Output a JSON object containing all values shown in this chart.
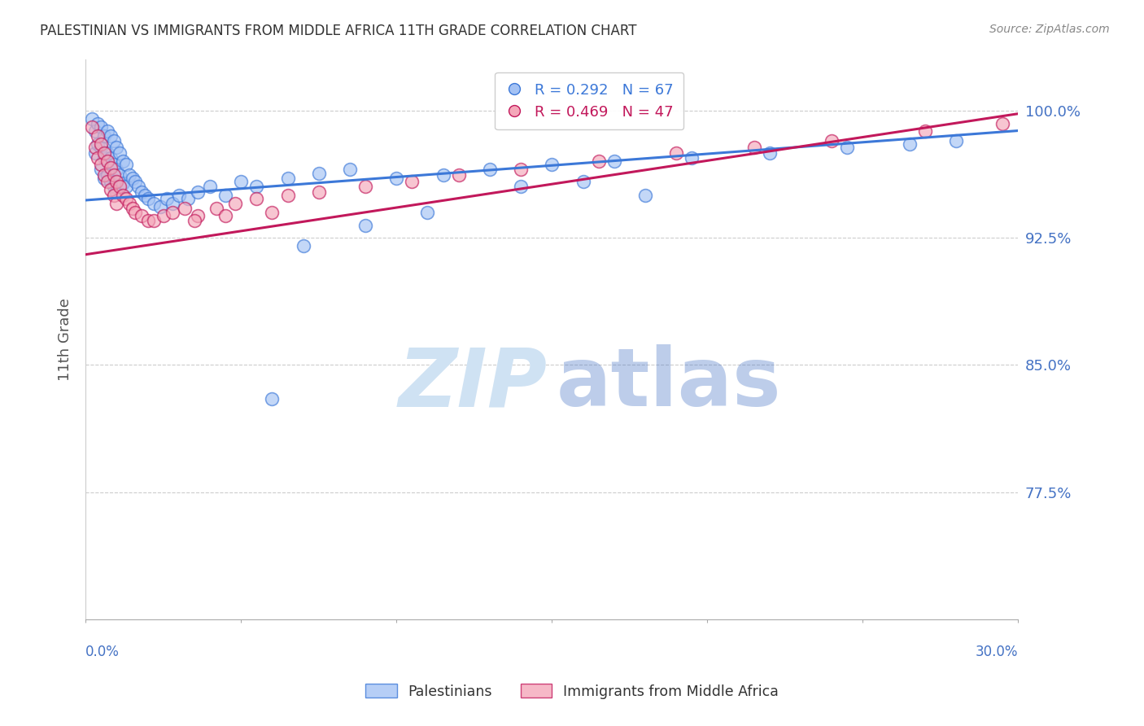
{
  "title": "PALESTINIAN VS IMMIGRANTS FROM MIDDLE AFRICA 11TH GRADE CORRELATION CHART",
  "source": "Source: ZipAtlas.com",
  "ylabel": "11th Grade",
  "ytick_labels": [
    "100.0%",
    "92.5%",
    "85.0%",
    "77.5%"
  ],
  "ytick_values": [
    1.0,
    0.925,
    0.85,
    0.775
  ],
  "xlim": [
    0.0,
    0.3
  ],
  "ylim": [
    0.7,
    1.03
  ],
  "blue_R": 0.292,
  "blue_N": 67,
  "pink_R": 0.469,
  "pink_N": 47,
  "blue_color": "#a4c2f4",
  "pink_color": "#f4a7b9",
  "blue_line_color": "#3c78d8",
  "pink_line_color": "#c2185b",
  "grid_color": "#cccccc",
  "title_color": "#333333",
  "axis_label_color": "#555555",
  "ytick_color": "#4472c4",
  "watermark_zip_color": "#cfe2f3",
  "watermark_atlas_color": "#4472c4",
  "blue_trend_x0": 0.0,
  "blue_trend_x1": 0.3,
  "blue_trend_y0": 0.947,
  "blue_trend_y1": 0.988,
  "pink_trend_x0": 0.0,
  "pink_trend_x1": 0.3,
  "pink_trend_y0": 0.915,
  "pink_trend_y1": 0.998,
  "blue_scatter_x": [
    0.002,
    0.003,
    0.003,
    0.004,
    0.004,
    0.005,
    0.005,
    0.005,
    0.006,
    0.006,
    0.006,
    0.007,
    0.007,
    0.007,
    0.008,
    0.008,
    0.008,
    0.009,
    0.009,
    0.009,
    0.01,
    0.01,
    0.01,
    0.011,
    0.011,
    0.012,
    0.012,
    0.013,
    0.013,
    0.014,
    0.015,
    0.016,
    0.017,
    0.018,
    0.019,
    0.02,
    0.022,
    0.024,
    0.026,
    0.028,
    0.03,
    0.033,
    0.036,
    0.04,
    0.045,
    0.05,
    0.055,
    0.065,
    0.075,
    0.085,
    0.1,
    0.115,
    0.13,
    0.15,
    0.17,
    0.195,
    0.22,
    0.245,
    0.265,
    0.28,
    0.06,
    0.07,
    0.09,
    0.11,
    0.14,
    0.16,
    0.18
  ],
  "blue_scatter_y": [
    0.995,
    0.988,
    0.975,
    0.992,
    0.98,
    0.99,
    0.978,
    0.965,
    0.985,
    0.972,
    0.96,
    0.988,
    0.975,
    0.962,
    0.985,
    0.972,
    0.958,
    0.982,
    0.968,
    0.955,
    0.978,
    0.965,
    0.952,
    0.975,
    0.962,
    0.97,
    0.957,
    0.968,
    0.955,
    0.962,
    0.96,
    0.958,
    0.955,
    0.952,
    0.95,
    0.948,
    0.945,
    0.943,
    0.948,
    0.945,
    0.95,
    0.948,
    0.952,
    0.955,
    0.95,
    0.958,
    0.955,
    0.96,
    0.963,
    0.965,
    0.96,
    0.962,
    0.965,
    0.968,
    0.97,
    0.972,
    0.975,
    0.978,
    0.98,
    0.982,
    0.83,
    0.92,
    0.932,
    0.94,
    0.955,
    0.958,
    0.95
  ],
  "pink_scatter_x": [
    0.002,
    0.003,
    0.004,
    0.004,
    0.005,
    0.005,
    0.006,
    0.006,
    0.007,
    0.007,
    0.008,
    0.008,
    0.009,
    0.009,
    0.01,
    0.01,
    0.011,
    0.012,
    0.013,
    0.014,
    0.015,
    0.016,
    0.018,
    0.02,
    0.022,
    0.025,
    0.028,
    0.032,
    0.036,
    0.042,
    0.048,
    0.055,
    0.065,
    0.075,
    0.09,
    0.105,
    0.12,
    0.14,
    0.165,
    0.19,
    0.215,
    0.24,
    0.27,
    0.295,
    0.035,
    0.045,
    0.06
  ],
  "pink_scatter_y": [
    0.99,
    0.978,
    0.985,
    0.972,
    0.98,
    0.968,
    0.975,
    0.962,
    0.97,
    0.958,
    0.966,
    0.953,
    0.962,
    0.95,
    0.958,
    0.945,
    0.955,
    0.95,
    0.948,
    0.945,
    0.942,
    0.94,
    0.938,
    0.935,
    0.935,
    0.938,
    0.94,
    0.942,
    0.938,
    0.942,
    0.945,
    0.948,
    0.95,
    0.952,
    0.955,
    0.958,
    0.962,
    0.965,
    0.97,
    0.975,
    0.978,
    0.982,
    0.988,
    0.992,
    0.935,
    0.938,
    0.94
  ]
}
